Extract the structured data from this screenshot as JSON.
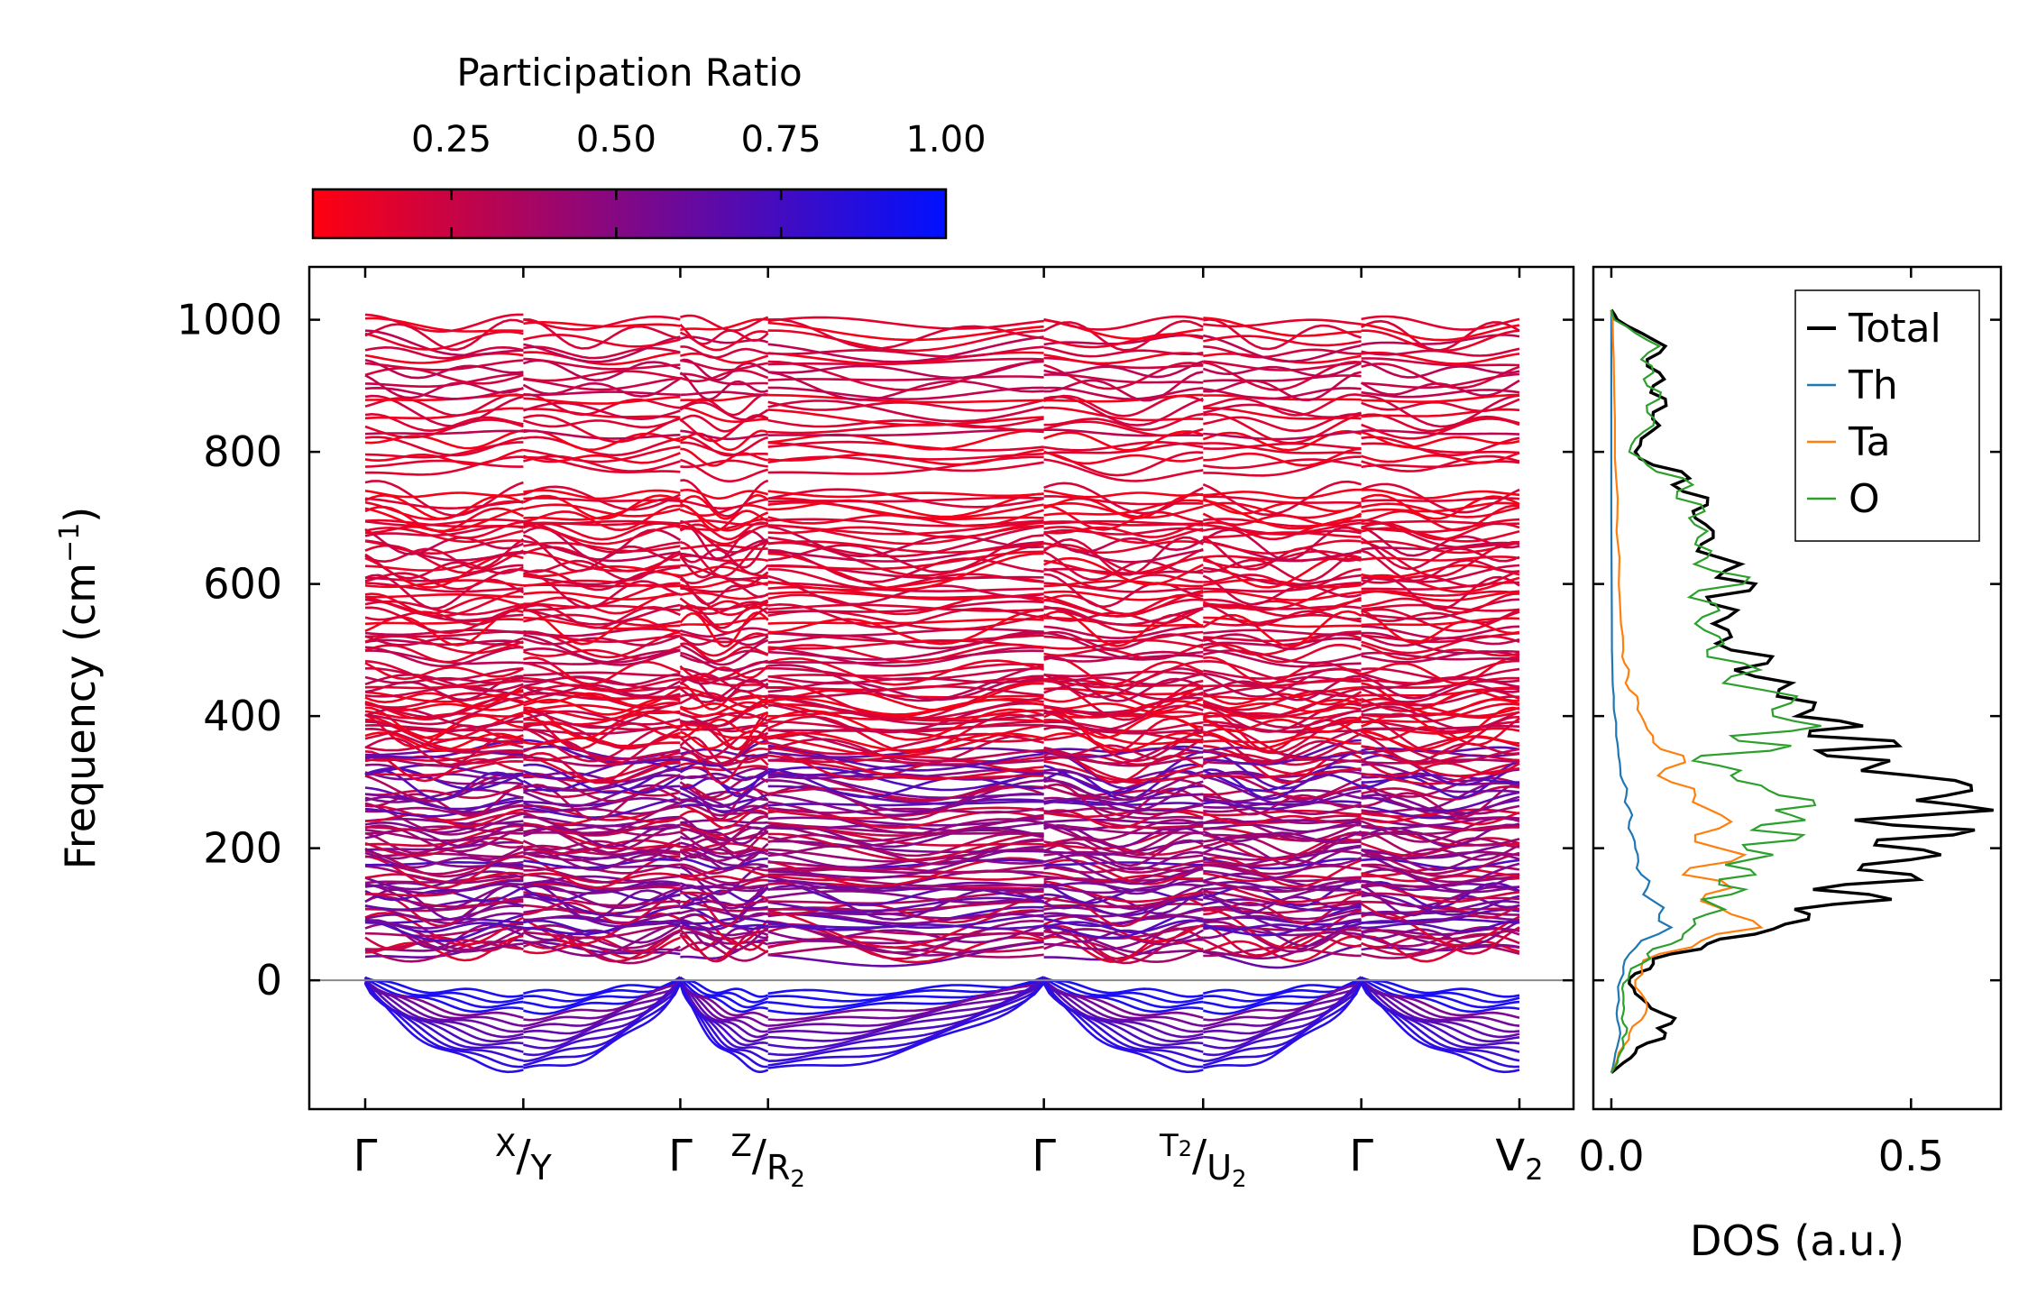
{
  "colorbar": {
    "title": "Participation Ratio",
    "ticks": [
      "0.25",
      "0.50",
      "0.75",
      "1.00"
    ],
    "tick_values": [
      0.25,
      0.5,
      0.75,
      1.0
    ],
    "range": [
      0.04,
      1.0
    ],
    "color_low": "#ff0010",
    "color_high": "#0010ff"
  },
  "chart_data": [
    {
      "type": "line",
      "name": "phonon-band-structure",
      "ylabel_main": "Frequency (cm",
      "ylabel_sup": "−1",
      "ylabel_end": ")",
      "ylim": [
        -195,
        1080
      ],
      "yticks": [
        "0",
        "200",
        "400",
        "600",
        "800",
        "1000"
      ],
      "ytick_values": [
        0,
        200,
        400,
        600,
        800,
        1000
      ],
      "zero_line": 0,
      "kpoints": [
        {
          "main": "Γ",
          "sup": "",
          "sub": "",
          "pos": 0.0
        },
        {
          "main": "",
          "sup": "X",
          "slash": "/",
          "base": "Y",
          "pos": 0.137
        },
        {
          "main": "Γ",
          "sup": "",
          "sub": "",
          "pos": 0.273
        },
        {
          "main": "",
          "sup": "Z",
          "slash": "/",
          "base": "R",
          "sub": "2",
          "pos": 0.349
        },
        {
          "main": "Γ",
          "sup": "",
          "sub": "",
          "pos": 0.588
        },
        {
          "main": "",
          "sup": "T",
          "supsub": "2",
          "slash": "/",
          "base": "U",
          "sub": "2",
          "pos": 0.726
        },
        {
          "main": "Γ",
          "sup": "",
          "sub": "",
          "pos": 0.863
        },
        {
          "main": "V",
          "sup": "",
          "sub": "2",
          "pos": 1.0
        }
      ],
      "band_frequency_range": [
        -135,
        1005
      ]
    },
    {
      "type": "line",
      "name": "density-of-states",
      "xlabel": "DOS (a.u.)",
      "xticks": [
        "0.0",
        "0.5"
      ],
      "xtick_values": [
        0.0,
        0.5
      ],
      "xlim": [
        -0.03,
        0.65
      ],
      "ylim": [
        -195,
        1080
      ],
      "legend_position": "top-right",
      "series": [
        {
          "name": "Total",
          "color": "#000000",
          "freq": [
            -140,
            -125,
            -110,
            -95,
            -80,
            -65,
            -50,
            -35,
            -20,
            -5,
            10,
            25,
            40,
            55,
            70,
            85,
            100,
            115,
            130,
            145,
            160,
            175,
            190,
            205,
            220,
            235,
            250,
            265,
            280,
            295,
            310,
            325,
            340,
            355,
            370,
            385,
            400,
            420,
            440,
            460,
            480,
            500,
            520,
            540,
            560,
            580,
            600,
            620,
            640,
            660,
            680,
            700,
            720,
            740,
            760,
            780,
            800,
            820,
            840,
            860,
            880,
            900,
            920,
            940,
            960,
            980,
            1000,
            1015
          ],
          "values": [
            0.0,
            0.02,
            0.04,
            0.06,
            0.09,
            0.1,
            0.085,
            0.06,
            0.04,
            0.03,
            0.04,
            0.07,
            0.1,
            0.16,
            0.24,
            0.29,
            0.33,
            0.37,
            0.43,
            0.39,
            0.5,
            0.42,
            0.55,
            0.44,
            0.57,
            0.47,
            0.52,
            0.58,
            0.56,
            0.6,
            0.5,
            0.44,
            0.36,
            0.48,
            0.33,
            0.42,
            0.31,
            0.34,
            0.28,
            0.24,
            0.26,
            0.2,
            0.2,
            0.17,
            0.21,
            0.16,
            0.24,
            0.19,
            0.18,
            0.15,
            0.17,
            0.14,
            0.16,
            0.12,
            0.13,
            0.07,
            0.04,
            0.05,
            0.08,
            0.07,
            0.09,
            0.07,
            0.08,
            0.06,
            0.09,
            0.05,
            0.01,
            0.0
          ]
        },
        {
          "name": "Th",
          "color": "#1f77b4",
          "freq": [
            -140,
            -120,
            -100,
            -80,
            -60,
            -40,
            -20,
            0,
            20,
            40,
            60,
            80,
            100,
            120,
            140,
            160,
            180,
            200,
            220,
            240,
            260,
            280,
            300,
            320,
            340,
            360,
            380,
            400,
            420,
            440,
            460,
            500,
            600,
            700,
            800,
            900,
            1015
          ],
          "values": [
            0.0,
            0.005,
            0.01,
            0.015,
            0.01,
            0.01,
            0.012,
            0.015,
            0.02,
            0.03,
            0.05,
            0.1,
            0.08,
            0.07,
            0.06,
            0.05,
            0.045,
            0.04,
            0.035,
            0.03,
            0.03,
            0.025,
            0.02,
            0.015,
            0.012,
            0.01,
            0.008,
            0.006,
            0.004,
            0.003,
            0.002,
            0.001,
            0.0005,
            0.0,
            0.0,
            0.0,
            0.0
          ]
        },
        {
          "name": "Ta",
          "color": "#ff7f0e",
          "freq": [
            -140,
            -120,
            -100,
            -80,
            -60,
            -40,
            -20,
            0,
            20,
            40,
            60,
            80,
            100,
            120,
            140,
            160,
            180,
            200,
            220,
            240,
            260,
            280,
            300,
            320,
            340,
            360,
            380,
            400,
            420,
            440,
            460,
            480,
            500,
            540,
            580,
            620,
            660,
            700,
            760,
            820,
            880,
            940,
            1000,
            1015
          ],
          "values": [
            0.0,
            0.01,
            0.02,
            0.03,
            0.05,
            0.06,
            0.05,
            0.04,
            0.05,
            0.08,
            0.15,
            0.25,
            0.2,
            0.15,
            0.2,
            0.12,
            0.2,
            0.18,
            0.14,
            0.2,
            0.16,
            0.14,
            0.1,
            0.09,
            0.12,
            0.07,
            0.06,
            0.05,
            0.045,
            0.03,
            0.028,
            0.022,
            0.02,
            0.016,
            0.014,
            0.013,
            0.011,
            0.01,
            0.008,
            0.006,
            0.005,
            0.004,
            0.002,
            0.0
          ]
        },
        {
          "name": "O",
          "color": "#2ca02c",
          "freq": [
            -140,
            -125,
            -110,
            -95,
            -80,
            -65,
            -50,
            -35,
            -20,
            -5,
            10,
            25,
            40,
            55,
            70,
            85,
            100,
            115,
            130,
            145,
            160,
            175,
            190,
            205,
            220,
            235,
            250,
            265,
            280,
            295,
            310,
            325,
            340,
            355,
            370,
            385,
            400,
            420,
            440,
            460,
            480,
            500,
            520,
            540,
            560,
            580,
            600,
            620,
            640,
            660,
            680,
            700,
            720,
            740,
            760,
            780,
            800,
            820,
            840,
            860,
            880,
            900,
            920,
            940,
            960,
            980,
            1000,
            1015
          ],
          "values": [
            0.0,
            0.01,
            0.015,
            0.02,
            0.025,
            0.02,
            0.02,
            0.02,
            0.02,
            0.02,
            0.03,
            0.05,
            0.06,
            0.1,
            0.12,
            0.14,
            0.16,
            0.17,
            0.2,
            0.18,
            0.24,
            0.19,
            0.27,
            0.22,
            0.32,
            0.25,
            0.3,
            0.34,
            0.28,
            0.25,
            0.2,
            0.18,
            0.15,
            0.3,
            0.2,
            0.35,
            0.27,
            0.3,
            0.25,
            0.2,
            0.22,
            0.16,
            0.18,
            0.14,
            0.18,
            0.13,
            0.22,
            0.17,
            0.16,
            0.14,
            0.16,
            0.13,
            0.15,
            0.11,
            0.12,
            0.06,
            0.03,
            0.04,
            0.07,
            0.06,
            0.08,
            0.06,
            0.07,
            0.05,
            0.08,
            0.04,
            0.005,
            0.0
          ]
        }
      ]
    }
  ]
}
